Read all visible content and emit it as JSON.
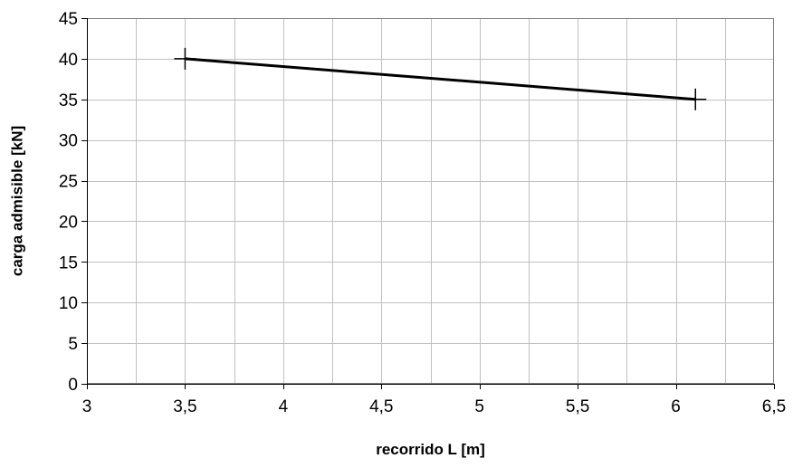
{
  "chart_data": {
    "type": "line",
    "title": "",
    "xlabel": "recorrido L [m]",
    "ylabel": "carga admisible [kN]",
    "xlim": [
      3,
      6.5
    ],
    "ylim": [
      0,
      45
    ],
    "x_ticks": [
      3,
      3.5,
      4,
      4.5,
      5,
      5.5,
      6,
      6.5
    ],
    "x_tick_labels": [
      "3",
      "3,5",
      "4",
      "4,5",
      "5",
      "5,5",
      "6",
      "6,5"
    ],
    "x_minor_step": 0.25,
    "y_ticks": [
      0,
      5,
      10,
      15,
      20,
      25,
      30,
      35,
      40,
      45
    ],
    "y_tick_labels": [
      "0",
      "5",
      "10",
      "15",
      "20",
      "25",
      "30",
      "35",
      "40",
      "45"
    ],
    "grid": true,
    "legend": "none",
    "series": [
      {
        "x": [
          3.5,
          6.1
        ],
        "y": [
          40,
          35
        ],
        "marker": "plus",
        "color": "#000000"
      }
    ]
  }
}
